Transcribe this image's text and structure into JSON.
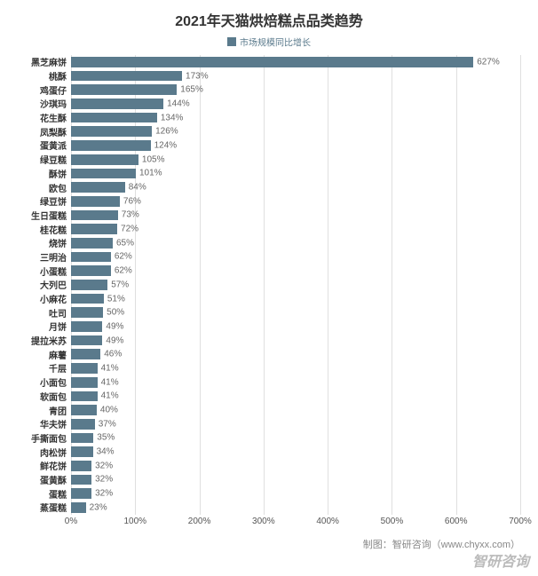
{
  "chart": {
    "type": "bar-horizontal",
    "title": "2021年天猫烘焙糕点品类趋势",
    "title_fontsize": 16,
    "title_color": "#333333",
    "legend": {
      "label": "市场规模同比增长",
      "color": "#5a7a8c",
      "fontsize": 10
    },
    "series_color": "#5a7a8c",
    "bar_label_color": "#666666",
    "bar_label_fontsize": 10,
    "y_label_fontsize": 10,
    "y_label_color": "#333333",
    "x_axis": {
      "min": 0,
      "max": 700,
      "tick_step": 100,
      "tick_suffix": "%",
      "fontsize": 10,
      "color": "#555555",
      "gridline_color": "#bfbfbf"
    },
    "categories": [
      "黑芝麻饼",
      "桃酥",
      "鸡蛋仔",
      "沙琪玛",
      "花生酥",
      "凤梨酥",
      "蛋黄派",
      "绿豆糕",
      "酥饼",
      "欧包",
      "绿豆饼",
      "生日蛋糕",
      "桂花糕",
      "烧饼",
      "三明治",
      "小蛋糕",
      "大列巴",
      "小麻花",
      "吐司",
      "月饼",
      "提拉米苏",
      "麻薯",
      "千层",
      "小面包",
      "软面包",
      "青团",
      "华夫饼",
      "手撕面包",
      "肉松饼",
      "鲜花饼",
      "蛋黄酥",
      "蛋糕",
      "蒸蛋糕"
    ],
    "values": [
      627,
      173,
      165,
      144,
      134,
      126,
      124,
      105,
      101,
      84,
      76,
      73,
      72,
      65,
      62,
      62,
      57,
      51,
      50,
      49,
      49,
      46,
      41,
      41,
      41,
      40,
      37,
      35,
      34,
      32,
      32,
      32,
      23
    ],
    "background_color": "#ffffff",
    "footer_note": "制图：智研咨询（www.chyxx.com）",
    "footer_fontsize": 11,
    "watermark": "智研咨询"
  }
}
